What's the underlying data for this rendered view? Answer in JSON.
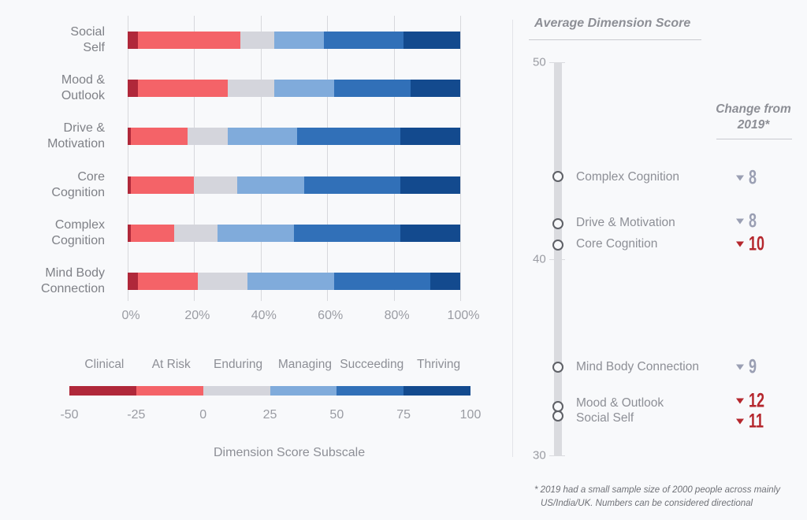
{
  "chart_data": [
    {
      "type": "bar",
      "orientation": "horizontal",
      "stacked": "percent",
      "categories": [
        "Social Self",
        "Mood & Outlook",
        "Drive & Motivation",
        "Core Cognition",
        "Complex Cognition",
        "Mind Body Connection"
      ],
      "category_lines": [
        [
          "Social",
          "Self"
        ],
        [
          "Mood &",
          "Outlook"
        ],
        [
          "Drive &",
          "Motivation"
        ],
        [
          "Core",
          "Cognition"
        ],
        [
          "Complex",
          "Cognition"
        ],
        [
          "Mind Body",
          "Connection"
        ]
      ],
      "series": [
        {
          "name": "Clinical",
          "color": "#b0283a",
          "values": [
            3,
            3,
            1,
            1,
            1,
            3
          ]
        },
        {
          "name": "At Risk",
          "color": "#f46368",
          "values": [
            31,
            27,
            17,
            19,
            13,
            18
          ]
        },
        {
          "name": "Enduring",
          "color": "#d4d5dc",
          "values": [
            10,
            14,
            12,
            13,
            13,
            15
          ]
        },
        {
          "name": "Managing",
          "color": "#80abdb",
          "values": [
            15,
            18,
            21,
            20,
            23,
            26
          ]
        },
        {
          "name": "Succeeding",
          "color": "#3170b8",
          "values": [
            24,
            23,
            31,
            29,
            32,
            29
          ]
        },
        {
          "name": "Thriving",
          "color": "#134a8e",
          "values": [
            17,
            15,
            18,
            18,
            18,
            9
          ]
        }
      ],
      "xlim": [
        0,
        100
      ],
      "xticks": [
        "0%",
        "20%",
        "40%",
        "60%",
        "80%",
        "100%"
      ],
      "grid": "vertical"
    },
    {
      "type": "legend-scale",
      "title": "Dimension Score Subscale",
      "bands": [
        "Clinical",
        "At Risk",
        "Enduring",
        "Managing",
        "Succeeding",
        "Thriving"
      ],
      "ticks": [
        "-50",
        "-25",
        "0",
        "25",
        "50",
        "75",
        "100"
      ]
    },
    {
      "type": "scatter",
      "title": "Average Dimension Score",
      "ylim": [
        30,
        50
      ],
      "yticks": [
        "50",
        "40",
        "30"
      ],
      "change_header": "Change from 2019*",
      "change_header_lines": [
        "Change from",
        "2019*"
      ],
      "points": [
        {
          "label": "Complex Cognition",
          "score": 44.2,
          "change": "8",
          "direction": "down",
          "highlight": false
        },
        {
          "label": "Drive & Motivation",
          "score": 41.8,
          "change": "8",
          "direction": "down",
          "highlight": false
        },
        {
          "label": "Core Cognition",
          "score": 40.7,
          "change": "10",
          "direction": "down",
          "highlight": true
        },
        {
          "label": "Mind Body Connection",
          "score": 34.5,
          "change": "9",
          "direction": "down",
          "highlight": false
        },
        {
          "label": "Mood & Outlook",
          "score": 32.5,
          "change": "12",
          "direction": "down",
          "highlight": true
        },
        {
          "label": "Social Self",
          "score": 32.0,
          "change": "11",
          "direction": "down",
          "highlight": true
        }
      ],
      "colors": {
        "neutral": "#9a9fb3",
        "highlight": "#b5272d"
      }
    }
  ],
  "footnote_lines": [
    "* 2019 had a small sample size of 2000 people across mainly",
    "US/India/UK. Numbers can be considered directional"
  ]
}
